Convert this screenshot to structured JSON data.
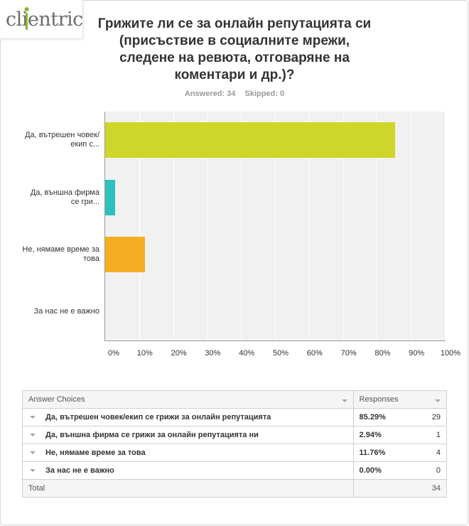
{
  "logo": {
    "text": "clientric"
  },
  "question": "Грижите ли се за онлайн репутацията си (присъствие в социалните мрежи, следене на ревюта, отговаряне на коментари и др.)?",
  "meta": {
    "answered": "Answered: 34",
    "skipped": "Skipped: 0"
  },
  "chart_data": {
    "type": "bar",
    "orientation": "horizontal",
    "categories": [
      "Да, вътрешен човек/екип с...",
      "Да, външна фирма се гри...",
      "Не, нямаме време за това",
      "За нас не е важно"
    ],
    "values": [
      85.29,
      2.94,
      11.76,
      0.0
    ],
    "colors": [
      "#cdd629",
      "#2fbfbe",
      "#f5ae23",
      "#a2a2a2"
    ],
    "xlim": [
      0,
      100
    ],
    "xticks": [
      "0%",
      "10%",
      "20%",
      "30%",
      "40%",
      "50%",
      "60%",
      "70%",
      "80%",
      "90%",
      "100%"
    ],
    "grid": true
  },
  "table": {
    "headers": {
      "choices": "Answer Choices",
      "responses": "Responses"
    },
    "rows": [
      {
        "choice": "Да, вътрешен човек/екип се грижи за онлайн репутацията",
        "percent": "85.29%",
        "count": "29"
      },
      {
        "choice": "Да, външна фирма се грижи за онлайн репутацията ни",
        "percent": "2.94%",
        "count": "1"
      },
      {
        "choice": "Не, нямаме време за това",
        "percent": "11.76%",
        "count": "4"
      },
      {
        "choice": "За нас не е важно",
        "percent": "0.00%",
        "count": "0"
      }
    ],
    "total_label": "Total",
    "total_count": "34"
  }
}
